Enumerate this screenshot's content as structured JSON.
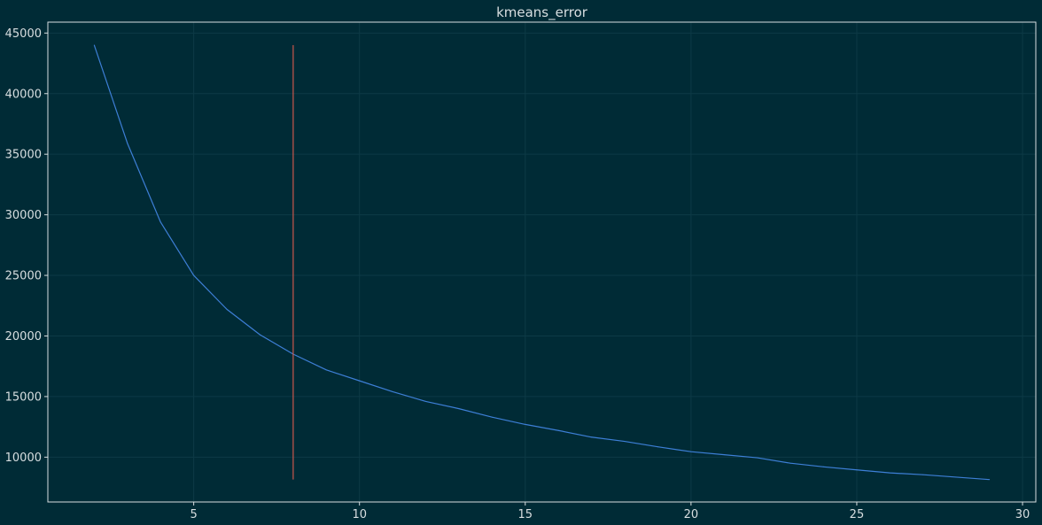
{
  "chart_data": {
    "type": "line",
    "title": "kmeans_error",
    "xlabel": "",
    "ylabel": "",
    "xlim": [
      0.6,
      30.4
    ],
    "ylim": [
      6300,
      45900
    ],
    "xticks": [
      5,
      10,
      15,
      20,
      25,
      30
    ],
    "yticks": [
      10000,
      15000,
      20000,
      25000,
      30000,
      35000,
      40000,
      45000
    ],
    "grid": true,
    "series": [
      {
        "color": "#3d7fd6",
        "x": [
          2,
          3,
          4,
          5,
          6,
          7,
          8,
          9,
          10,
          11,
          12,
          13,
          14,
          15,
          16,
          17,
          18,
          19,
          20,
          21,
          22,
          23,
          24,
          25,
          26,
          27,
          28,
          29
        ],
        "y": [
          44000,
          35900,
          29400,
          25000,
          22200,
          20100,
          18500,
          17200,
          16300,
          15400,
          14600,
          14000,
          13300,
          12700,
          12200,
          11650,
          11300,
          10850,
          10450,
          10200,
          9950,
          9500,
          9200,
          8950,
          8700,
          8550,
          8350,
          8150
        ]
      }
    ],
    "vline": {
      "x": 8,
      "y_from": 8150,
      "y_to": 44000,
      "color": "#c9574d"
    },
    "colors": {
      "background": "#002b36",
      "grid": "#0d3a46",
      "axes": "#d8dee0",
      "text": "#d8dee0"
    }
  }
}
